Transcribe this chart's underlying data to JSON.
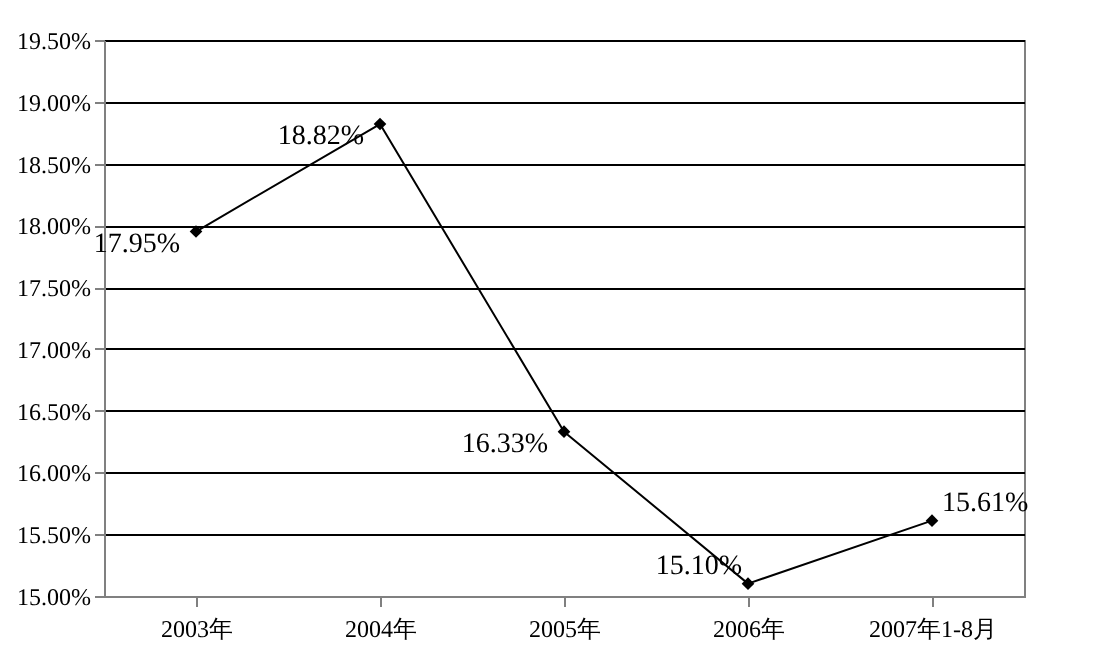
{
  "chart_data": {
    "type": "line",
    "categories": [
      "2003年",
      "2004年",
      "2005年",
      "2006年",
      "2007年1-8月"
    ],
    "series": [
      {
        "color": "#000000",
        "values": [
          17.95,
          18.82,
          16.33,
          15.1,
          15.61
        ],
        "value_labels": [
          "17.95%",
          "18.82%",
          "16.33%",
          "15.10%",
          "15.61%"
        ]
      }
    ],
    "ylim": [
      15,
      19.5
    ],
    "yticks": [
      {
        "value": 15,
        "label": "15.00%"
      },
      {
        "value": 15.5,
        "label": "15.50%"
      },
      {
        "value": 16,
        "label": "16.00%"
      },
      {
        "value": 16.5,
        "label": "16.50%"
      },
      {
        "value": 17,
        "label": "17.00%"
      },
      {
        "value": 17.5,
        "label": "17.50%"
      },
      {
        "value": 18,
        "label": "18.00%"
      },
      {
        "value": 18.5,
        "label": "18.50%"
      },
      {
        "value": 19,
        "label": "19.00%"
      },
      {
        "value": 19.5,
        "label": "19.50%"
      }
    ],
    "grid": "y",
    "marker": "diamond",
    "line_style": "solid"
  }
}
